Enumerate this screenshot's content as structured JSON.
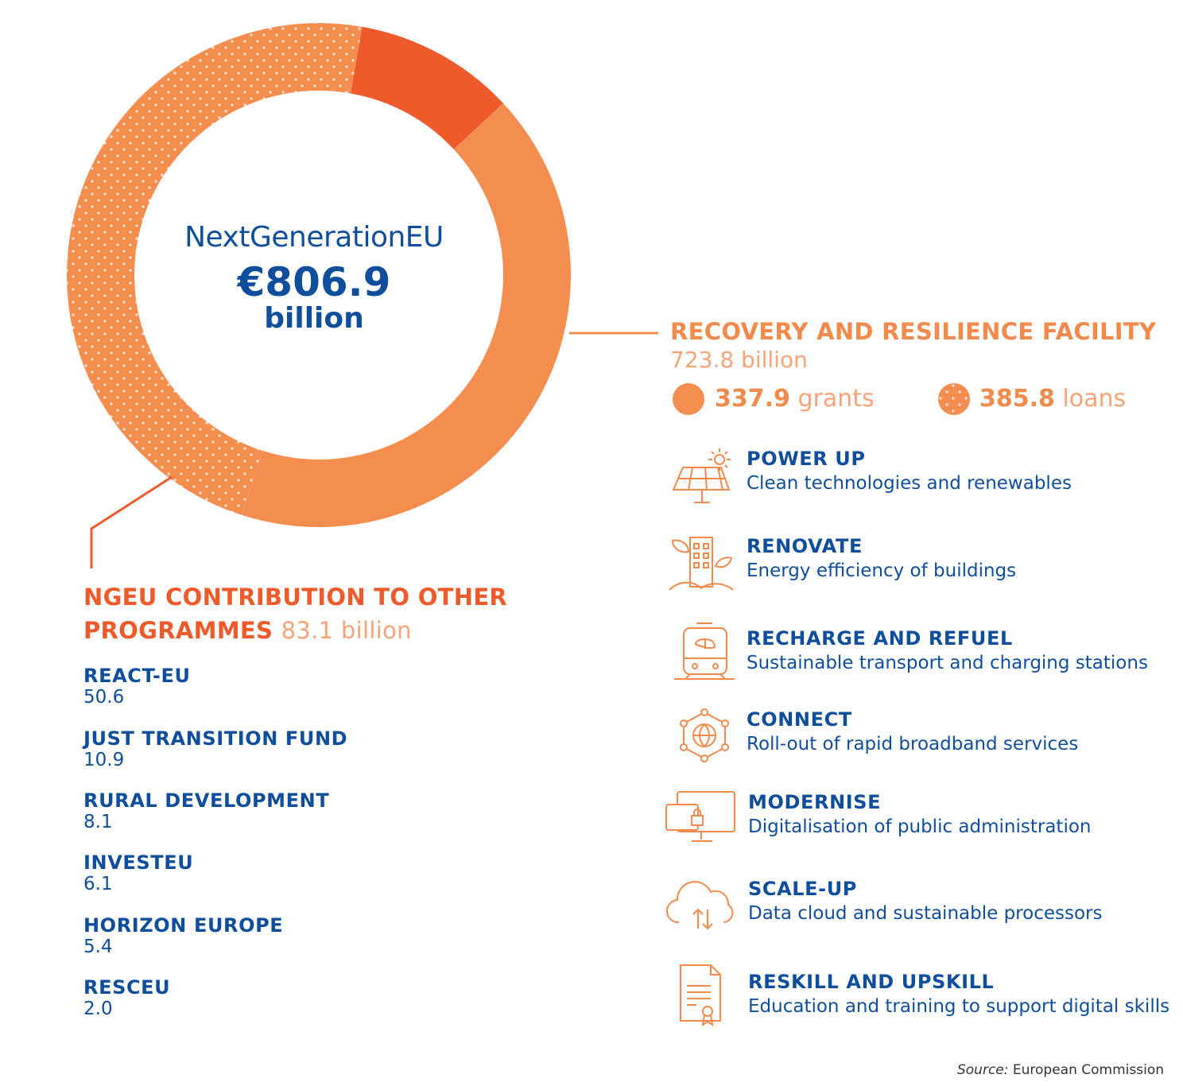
{
  "chart_data": {
    "type": "pie",
    "title": "NextGenerationEU",
    "total_value": "€806.9",
    "total_unit": "billion",
    "slices": [
      {
        "name": "grants",
        "value": 337.9,
        "color": "#f58d4f",
        "pattern": "solid"
      },
      {
        "name": "loans",
        "value": 385.8,
        "color": "#f58d4f",
        "pattern": "dotted"
      },
      {
        "name": "NGEU contribution to other programmes",
        "value": 83.1,
        "color": "#ee5a2a",
        "pattern": "solid"
      }
    ]
  },
  "rrf": {
    "title": "RECOVERY AND RESILIENCE FACILITY",
    "total": "723.8 billion",
    "grants_value": "337.9",
    "grants_label": "grants",
    "loans_value": "385.8",
    "loans_label": "loans",
    "categories": [
      {
        "title": "POWER UP",
        "desc": "Clean technologies and renewables",
        "icon": "solar-panel-icon"
      },
      {
        "title": "RENOVATE",
        "desc": "Energy efficiency of buildings",
        "icon": "green-building-icon"
      },
      {
        "title": "RECHARGE AND REFUEL",
        "desc": "Sustainable transport and charging stations",
        "icon": "train-icon"
      },
      {
        "title": "CONNECT",
        "desc": "Roll-out of rapid broadband services",
        "icon": "network-globe-icon"
      },
      {
        "title": "MODERNISE",
        "desc": "Digitalisation of public administration",
        "icon": "secure-computer-icon"
      },
      {
        "title": "SCALE-UP",
        "desc": "Data cloud and sustainable processors",
        "icon": "cloud-transfer-icon"
      },
      {
        "title": "RESKILL AND UPSKILL",
        "desc": "Education and training to support digital skills",
        "icon": "certificate-icon"
      }
    ]
  },
  "ngeu": {
    "title_line1": "NGEU CONTRIBUTION TO OTHER",
    "title_line2": "PROGRAMMES",
    "total": "83.1 billion",
    "programmes": [
      {
        "name": "REACT-EU",
        "value": "50.6"
      },
      {
        "name": "JUST TRANSITION FUND",
        "value": "10.9"
      },
      {
        "name": "RURAL DEVELOPMENT",
        "value": "8.1"
      },
      {
        "name": "INVESTEU",
        "value": "6.1"
      },
      {
        "name": "HORIZON EUROPE",
        "value": "5.4"
      },
      {
        "name": "RESCEU",
        "value": "2.0"
      }
    ]
  },
  "source": {
    "label": "Source:",
    "text": "European Commission"
  },
  "colors": {
    "blue": "#0f4e9c",
    "orange": "#f58d4f",
    "dark_orange": "#ee5a2a",
    "light_orange": "#f6a477"
  }
}
